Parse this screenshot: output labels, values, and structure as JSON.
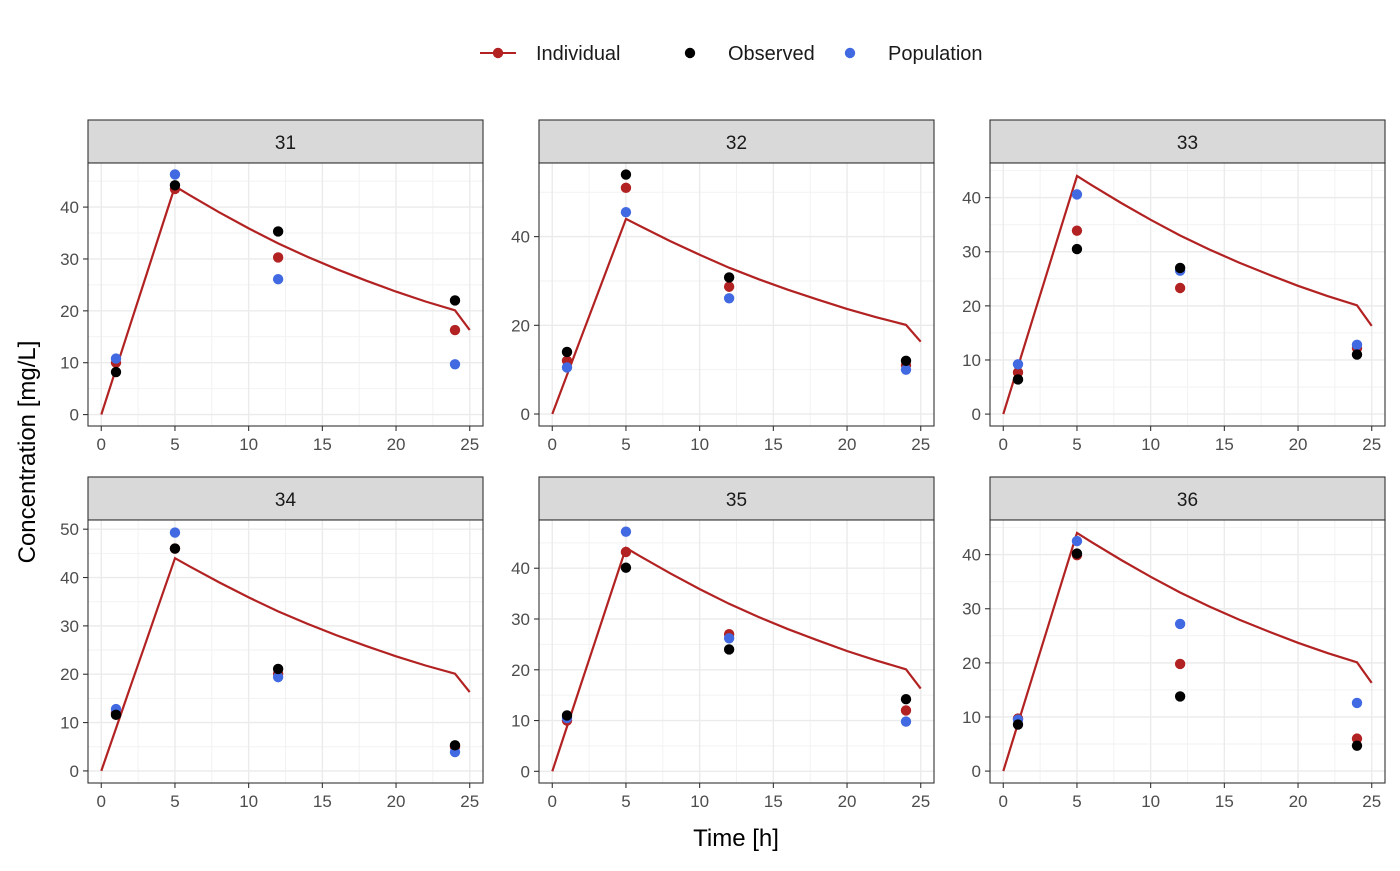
{
  "legend": {
    "items": [
      {
        "label": "Individual",
        "color": "#B22222",
        "glyph": "line-point"
      },
      {
        "label": "Observed",
        "color": "#000000",
        "glyph": "point"
      },
      {
        "label": "Population",
        "color": "#4169E1",
        "glyph": "point"
      }
    ]
  },
  "xlabel": "Time [h]",
  "ylabel": "Concentration [mg/L]",
  "chart_data": {
    "type": "scatter",
    "facet_by": "ID",
    "x_ticks": [
      0,
      5,
      10,
      15,
      20,
      25
    ],
    "xlim": [
      -0.9,
      25.9
    ],
    "grid": true,
    "legend_position": "top",
    "line": {
      "name": "Individual",
      "color": "#B22222",
      "x": [
        0,
        1,
        2,
        3,
        4,
        5,
        6,
        8,
        10,
        12,
        14,
        16,
        18,
        20,
        22,
        24,
        25
      ],
      "y": [
        0,
        8.8,
        17.6,
        26.4,
        35.2,
        44.0,
        42.3,
        39.0,
        35.9,
        33.0,
        30.4,
        28.0,
        25.8,
        23.7,
        21.8,
        20.1,
        16.3
      ]
    },
    "panels": [
      {
        "id": "31",
        "ylim": [
          -2.2,
          48.5
        ],
        "y_ticks": [
          0,
          10,
          20,
          30,
          40
        ],
        "individual": [
          [
            1,
            10.0
          ],
          [
            5,
            43.5
          ],
          [
            12,
            30.3
          ],
          [
            24,
            16.3
          ]
        ],
        "observed": [
          [
            1,
            8.2
          ],
          [
            5,
            44.2
          ],
          [
            12,
            35.3
          ],
          [
            24,
            22.0
          ]
        ],
        "population": [
          [
            1,
            10.8
          ],
          [
            5,
            46.3
          ],
          [
            12,
            26.1
          ],
          [
            24,
            9.7
          ]
        ]
      },
      {
        "id": "32",
        "ylim": [
          -2.7,
          56.6
        ],
        "y_ticks": [
          0,
          20,
          40
        ],
        "individual": [
          [
            1,
            12.0
          ],
          [
            5,
            51.0
          ],
          [
            12,
            28.7
          ],
          [
            24,
            11.0
          ]
        ],
        "observed": [
          [
            1,
            14.0
          ],
          [
            5,
            54.0
          ],
          [
            12,
            30.8
          ],
          [
            24,
            12.0
          ]
        ],
        "population": [
          [
            1,
            10.5
          ],
          [
            5,
            45.5
          ],
          [
            12,
            26.1
          ],
          [
            24,
            10.0
          ]
        ]
      },
      {
        "id": "33",
        "ylim": [
          -2.2,
          46.4
        ],
        "y_ticks": [
          0,
          10,
          20,
          30,
          40
        ],
        "individual": [
          [
            1,
            7.7
          ],
          [
            5,
            33.9
          ],
          [
            12,
            23.3
          ],
          [
            24,
            12.2
          ]
        ],
        "observed": [
          [
            1,
            6.4
          ],
          [
            5,
            30.5
          ],
          [
            12,
            27.0
          ],
          [
            24,
            11.0
          ]
        ],
        "population": [
          [
            1,
            9.2
          ],
          [
            5,
            40.6
          ],
          [
            12,
            26.5
          ],
          [
            24,
            12.8
          ]
        ]
      },
      {
        "id": "34",
        "ylim": [
          -2.5,
          51.9
        ],
        "y_ticks": [
          0,
          10,
          20,
          30,
          40,
          50
        ],
        "individual": [
          [
            1,
            12.0
          ],
          [
            5,
            46.0
          ],
          [
            12,
            20.1
          ],
          [
            24,
            5.0
          ]
        ],
        "observed": [
          [
            1,
            11.6
          ],
          [
            5,
            46.0
          ],
          [
            12,
            21.1
          ],
          [
            24,
            5.3
          ]
        ],
        "population": [
          [
            1,
            12.8
          ],
          [
            5,
            49.3
          ],
          [
            12,
            19.4
          ],
          [
            24,
            3.9
          ]
        ]
      },
      {
        "id": "35",
        "ylim": [
          -2.3,
          49.5
        ],
        "y_ticks": [
          0,
          10,
          20,
          30,
          40
        ],
        "individual": [
          [
            1,
            10.0
          ],
          [
            5,
            43.2
          ],
          [
            12,
            27.0
          ],
          [
            24,
            12.0
          ]
        ],
        "observed": [
          [
            1,
            11.0
          ],
          [
            5,
            40.1
          ],
          [
            12,
            24.0
          ],
          [
            24,
            14.2
          ]
        ],
        "population": [
          [
            1,
            10.5
          ],
          [
            5,
            47.2
          ],
          [
            12,
            26.2
          ],
          [
            24,
            9.8
          ]
        ]
      },
      {
        "id": "36",
        "ylim": [
          -2.2,
          46.4
        ],
        "y_ticks": [
          0,
          10,
          20,
          30,
          40
        ],
        "individual": [
          [
            1,
            9.7
          ],
          [
            5,
            39.9
          ],
          [
            12,
            19.8
          ],
          [
            24,
            6.0
          ]
        ],
        "observed": [
          [
            1,
            8.6
          ],
          [
            5,
            40.2
          ],
          [
            12,
            13.8
          ],
          [
            24,
            4.7
          ]
        ],
        "population": [
          [
            1,
            9.5
          ],
          [
            5,
            42.5
          ],
          [
            12,
            27.2
          ],
          [
            24,
            12.6
          ]
        ]
      }
    ]
  }
}
